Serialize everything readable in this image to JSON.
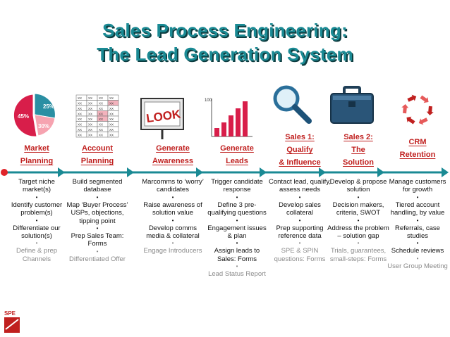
{
  "title_line1": "Sales Process Engineering:",
  "title_line2": "The Lead Generation System",
  "icons": {
    "pie_labels": [
      "25%",
      "30%",
      "45%"
    ],
    "look_sign": "LOOK",
    "chart_axis_max": "100",
    "table_cell": "XX"
  },
  "stages": [
    {
      "label_lines": [
        "Market",
        "Planning"
      ],
      "items": [
        {
          "text": "Target niche market(s)",
          "faded": false
        },
        {
          "text": "Identify customer problem(s)",
          "faded": false
        },
        {
          "text": "Differentiate our solution(s)",
          "faded": false
        },
        {
          "text": "Define & prep Channels",
          "faded": true
        }
      ]
    },
    {
      "label_lines": [
        "Account",
        "Planning"
      ],
      "items": [
        {
          "text": "Build segmented database",
          "faded": false
        },
        {
          "text": "Map ‘Buyer Process’ USPs, objections, tipping point",
          "faded": false
        },
        {
          "text": "Prep Sales Team: Forms",
          "faded": false
        },
        {
          "text": "Differentiated Offer",
          "faded": true
        }
      ]
    },
    {
      "label_lines": [
        "Generate",
        "Awareness"
      ],
      "items": [
        {
          "text": "Marcomms to ‘worry’ candidates",
          "faded": false
        },
        {
          "text": "Raise awareness of solution value",
          "faded": false
        },
        {
          "text": "Develop comms media & collateral",
          "faded": false
        },
        {
          "text": "Engage Introducers",
          "faded": true
        }
      ]
    },
    {
      "label_lines": [
        "Generate",
        "Leads"
      ],
      "items": [
        {
          "text": "Trigger candidate response",
          "faded": false
        },
        {
          "text": "Define 3 pre-qualifying questions",
          "faded": false
        },
        {
          "text": "Engagement issues & plan",
          "faded": false
        },
        {
          "text": "Assign leads to Sales: Forms",
          "faded": false
        },
        {
          "text": "Lead Status Report",
          "faded": true
        }
      ]
    },
    {
      "label_lines": [
        "Sales 1:",
        "Qualify",
        "& Influence"
      ],
      "items": [
        {
          "text": "Contact lead, qualify, assess needs",
          "faded": false
        },
        {
          "text": "Develop sales collateral",
          "faded": false
        },
        {
          "text": "Prep supporting reference data",
          "faded": false
        },
        {
          "text": "SPE & SPIN questions: Forms",
          "faded": true
        }
      ]
    },
    {
      "label_lines": [
        "Sales 2:",
        "The",
        "Solution"
      ],
      "items": [
        {
          "text": "Develop & propose solution",
          "faded": false
        },
        {
          "text": "Decision makers, criteria, SWOT",
          "faded": false
        },
        {
          "text": "Address the problem – solution gap",
          "faded": false
        },
        {
          "text": "Trials, guarantees, small-steps: Forms",
          "faded": true
        }
      ]
    },
    {
      "label_lines": [
        "CRM",
        "Retention"
      ],
      "items": [
        {
          "text": "Manage customers for growth",
          "faded": false
        },
        {
          "text": "Tiered account handling, by value",
          "faded": false
        },
        {
          "text": "Referrals, case studies",
          "faded": false
        },
        {
          "text": "Schedule reviews",
          "faded": false
        },
        {
          "text": "User Group Meeting",
          "faded": true
        }
      ]
    }
  ],
  "logo_text": "SPE"
}
